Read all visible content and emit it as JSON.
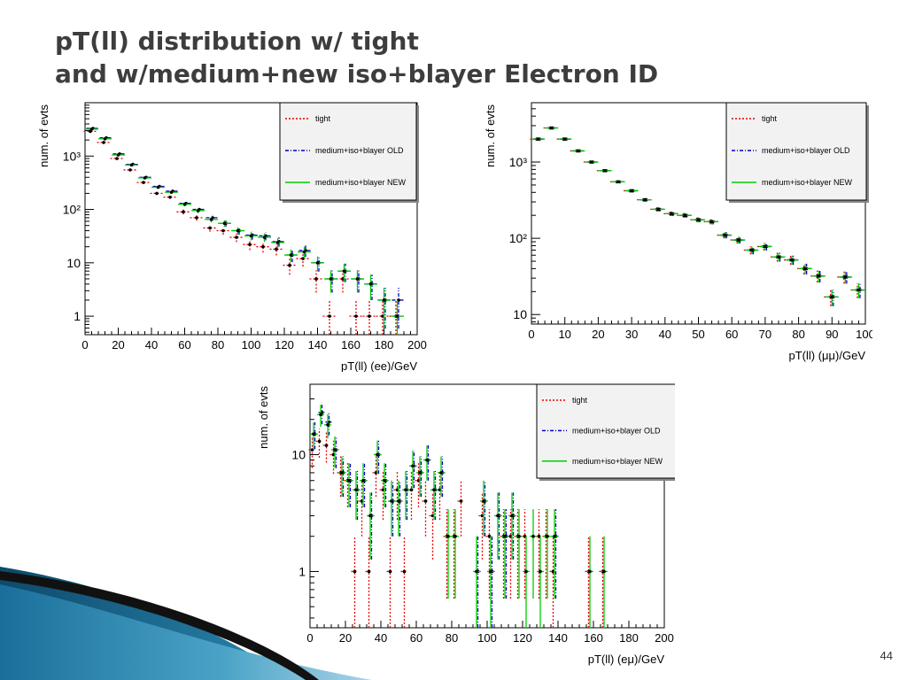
{
  "title": {
    "line1": "pT(ll) distribution w/ tight",
    "line2": "and w/medium+new iso+blayer Electron ID"
  },
  "page_number": "44",
  "colors": {
    "tight": "#ee0000",
    "old": "#0000cc",
    "new": "#00cc00",
    "marker": "#000000",
    "legend_bg": "#f2f2f2",
    "title": "#3d3d3d"
  },
  "chart_data": [
    {
      "type": "scatter",
      "name": "ee",
      "xlabel": "pT(ll) (ee)/GeV",
      "ylabel": "num. of evts",
      "xlim": [
        0,
        200
      ],
      "ylim": [
        0.45,
        10000
      ],
      "log_y": true,
      "bin_width": 8,
      "x_ticks": [
        "0",
        "20",
        "40",
        "60",
        "80",
        "100",
        "120",
        "140",
        "160",
        "180",
        "200"
      ],
      "y_ticks": [
        {
          "v": 1,
          "t": "1"
        },
        {
          "v": 10,
          "t": "10"
        },
        {
          "v": 100,
          "t": "10²"
        },
        {
          "v": 1000,
          "t": "10³"
        }
      ],
      "legend": [
        "tight",
        "medium+iso+blayer OLD",
        "medium+iso+blayer NEW"
      ],
      "x": [
        4,
        12,
        20,
        28,
        36,
        44,
        52,
        60,
        68,
        76,
        84,
        92,
        100,
        108,
        116,
        124,
        132,
        140,
        148,
        156,
        164,
        172,
        180,
        188
      ],
      "series": [
        {
          "name": "tight",
          "values": [
            2900,
            1800,
            900,
            550,
            320,
            200,
            170,
            90,
            70,
            45,
            40,
            30,
            22,
            20,
            18,
            9,
            12,
            5,
            1,
            5,
            1,
            1,
            1,
            1
          ]
        },
        {
          "name": "medium+iso+blayer OLD",
          "values": [
            3300,
            2200,
            1100,
            700,
            400,
            270,
            220,
            130,
            100,
            70,
            55,
            40,
            33,
            32,
            25,
            14,
            17,
            10,
            5,
            7,
            5,
            4,
            2,
            2
          ]
        },
        {
          "name": "medium+iso+blayer NEW",
          "values": [
            3200,
            2100,
            1050,
            680,
            390,
            260,
            210,
            125,
            95,
            65,
            55,
            40,
            32,
            30,
            24,
            14,
            16,
            10,
            5,
            7,
            5,
            4,
            2,
            1
          ]
        }
      ]
    },
    {
      "type": "scatter",
      "name": "mumu",
      "xlabel": "pT(ll) (μμ)/GeV",
      "ylabel": "num. of evts",
      "xlim": [
        0,
        100
      ],
      "ylim": [
        7.5,
        6000
      ],
      "log_y": true,
      "bin_width": 4,
      "x_ticks": [
        "0",
        "10",
        "20",
        "30",
        "40",
        "50",
        "60",
        "70",
        "80",
        "90",
        "100"
      ],
      "y_ticks": [
        {
          "v": 10,
          "t": "10"
        },
        {
          "v": 100,
          "t": "10²"
        },
        {
          "v": 1000,
          "t": "10³"
        }
      ],
      "legend": [
        "tight",
        "medium+iso+blayer OLD",
        "medium+iso+blayer NEW"
      ],
      "x": [
        2,
        6,
        10,
        14,
        18,
        22,
        26,
        30,
        34,
        38,
        42,
        46,
        50,
        54,
        58,
        62,
        66,
        70,
        74,
        78,
        82,
        86,
        90,
        94,
        98
      ],
      "series": [
        {
          "name": "tight",
          "values": [
            2000,
            2800,
            2000,
            1400,
            1000,
            770,
            550,
            420,
            320,
            240,
            210,
            200,
            175,
            165,
            110,
            95,
            70,
            78,
            57,
            52,
            40,
            32,
            17,
            31,
            21
          ]
        },
        {
          "name": "medium+iso+blayer OLD",
          "values": [
            2000,
            2800,
            2000,
            1400,
            1000,
            770,
            550,
            420,
            320,
            240,
            210,
            200,
            175,
            165,
            110,
            95,
            70,
            78,
            57,
            52,
            40,
            32,
            17,
            31,
            21
          ]
        },
        {
          "name": "medium+iso+blayer NEW",
          "values": [
            2000,
            2800,
            2000,
            1400,
            1000,
            770,
            550,
            420,
            320,
            240,
            210,
            200,
            175,
            165,
            110,
            95,
            70,
            78,
            57,
            52,
            40,
            32,
            17,
            31,
            21
          ]
        }
      ]
    },
    {
      "type": "scatter",
      "name": "emu",
      "xlabel": "pT(ll) (eμ)/GeV",
      "ylabel": "num. of evts",
      "xlim": [
        0,
        200
      ],
      "ylim": [
        0.33,
        40
      ],
      "log_y": true,
      "bin_width": 4,
      "x_ticks": [
        "0",
        "20",
        "40",
        "60",
        "80",
        "100",
        "120",
        "140",
        "160",
        "180",
        "200"
      ],
      "y_ticks": [
        {
          "v": 1,
          "t": "1"
        },
        {
          "v": 10,
          "t": "10"
        }
      ],
      "legend": [
        "tight",
        "medium+iso+blayer OLD",
        "medium+iso+blayer NEW"
      ],
      "x": [
        2,
        6,
        10,
        14,
        18,
        22,
        26,
        30,
        34,
        38,
        42,
        46,
        50,
        54,
        58,
        62,
        66,
        70,
        74,
        78,
        82,
        86,
        90,
        94,
        98,
        102,
        106,
        110,
        114,
        118,
        122,
        126,
        130,
        134,
        138,
        142,
        146,
        150,
        154,
        158,
        162,
        166
      ],
      "series": [
        {
          "name": "tight",
          "values": [
            11,
            13,
            12,
            10,
            7,
            6,
            1,
            4,
            1,
            7,
            5,
            1,
            5,
            1,
            5,
            6,
            4,
            3,
            5,
            2,
            2,
            4,
            0,
            0,
            3,
            2,
            0,
            2,
            2,
            2,
            2,
            0,
            2,
            2,
            1,
            0,
            0,
            0,
            0,
            1,
            0,
            1
          ]
        },
        {
          "name": "medium+iso+blayer OLD",
          "values": [
            15,
            23,
            19,
            11,
            7,
            6,
            5,
            6,
            3,
            10,
            6,
            4,
            4,
            5,
            8,
            7,
            9,
            5,
            7,
            0,
            0,
            0,
            0,
            1,
            4,
            1,
            3,
            2,
            3,
            0,
            0,
            0,
            0,
            0,
            2,
            0,
            0,
            0,
            0,
            0,
            0,
            0
          ]
        },
        {
          "name": "medium+iso+blayer NEW",
          "values": [
            15,
            22,
            18,
            11,
            7,
            6,
            5,
            6,
            3,
            10,
            6,
            4,
            4,
            5,
            8,
            7,
            9,
            5,
            7,
            2,
            2,
            0,
            0,
            1,
            4,
            1,
            3,
            2,
            3,
            2,
            1,
            2,
            1,
            2,
            2,
            0,
            0,
            0,
            0,
            1,
            0,
            1
          ]
        }
      ]
    }
  ]
}
